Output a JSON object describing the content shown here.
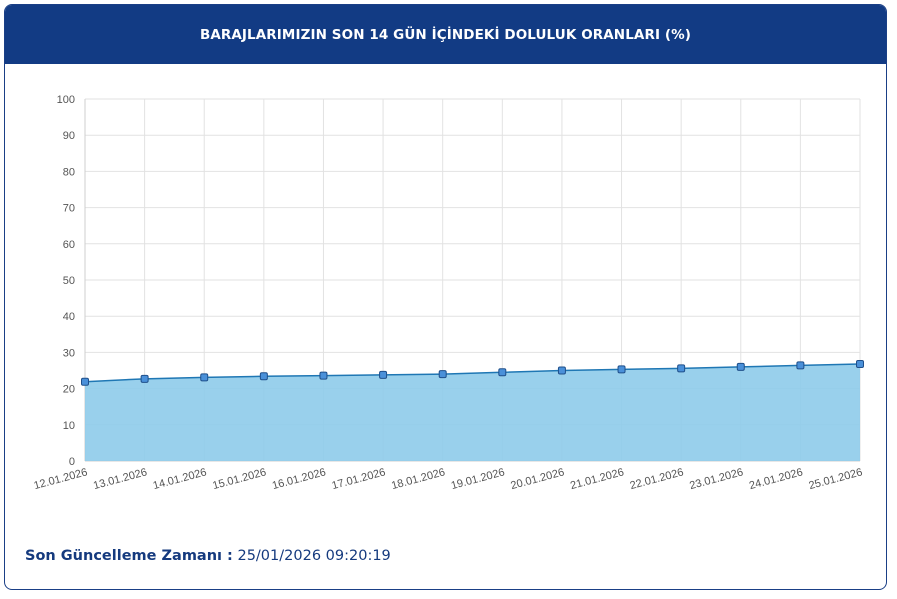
{
  "header": {
    "title": "BARAJLARIMIZIN SON 14 GÜN İÇİNDEKİ DOLULUK ORANLARI (%)"
  },
  "footer": {
    "label": "Son Güncelleme Zamanı :",
    "value": "25/01/2026 09:20:19"
  },
  "colors": {
    "header_bg": "#123b84",
    "area_fill": "#8ecbea",
    "line": "#1f77b4",
    "marker": "#4a90d9"
  },
  "chart_data": {
    "type": "area",
    "title": "",
    "xlabel": "",
    "ylabel": "",
    "ylim": [
      0,
      100
    ],
    "yticks": [
      0,
      10,
      20,
      30,
      40,
      50,
      60,
      70,
      80,
      90,
      100
    ],
    "grid": true,
    "categories": [
      "12.01.2026",
      "13.01.2026",
      "14.01.2026",
      "15.01.2026",
      "16.01.2026",
      "17.01.2026",
      "18.01.2026",
      "19.01.2026",
      "20.01.2026",
      "21.01.2026",
      "22.01.2026",
      "23.01.2026",
      "24.01.2026",
      "25.01.2026"
    ],
    "series": [
      {
        "values": [
          21.9,
          22.7,
          23.1,
          23.4,
          23.6,
          23.8,
          24.0,
          24.5,
          25.0,
          25.3,
          25.6,
          26.0,
          26.4,
          26.8
        ]
      }
    ]
  }
}
